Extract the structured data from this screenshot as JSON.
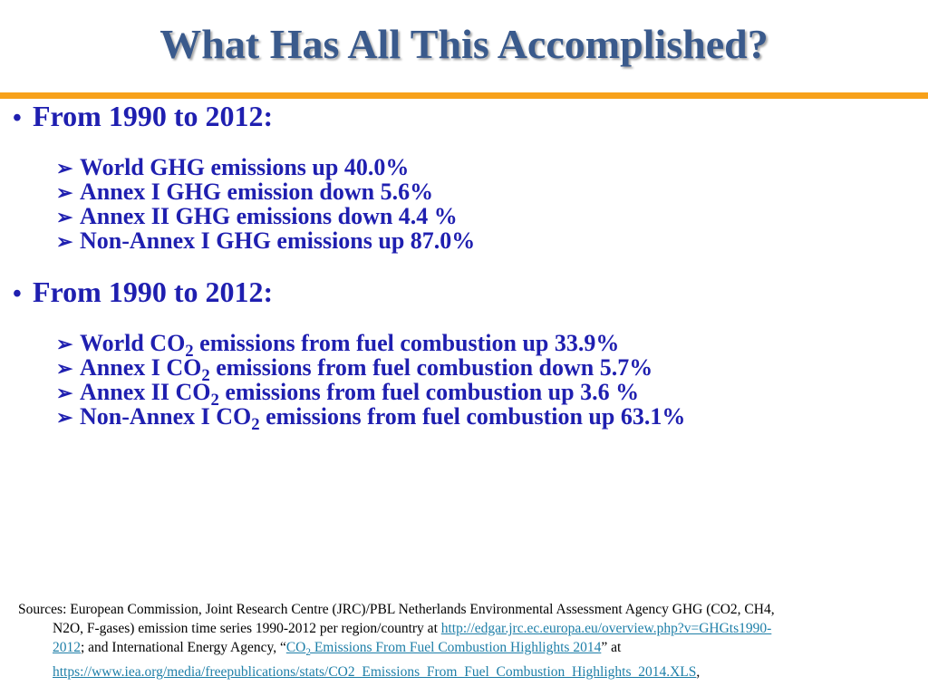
{
  "title": "What Has All This Accomplished?",
  "accent_color": "#f7a11a",
  "text_color": "#1f1fb0",
  "bullet_glyph": "•",
  "arrow_glyph": "➢",
  "section1": {
    "heading": "From 1990 to 2012:",
    "items": [
      "World GHG emissions up 40.0%",
      "Annex I GHG emission down 5.6%",
      "Annex II GHG emissions down 4.4 %",
      "Non-Annex I GHG emissions up 87.0%"
    ]
  },
  "section2": {
    "heading": "From 1990 to 2012:",
    "items": [
      {
        "pre": "World CO",
        "sub": "2",
        "post": " emissions from fuel combustion up 33.9%"
      },
      {
        "pre": "Annex I CO",
        "sub": "2",
        "post": " emissions from fuel combustion down 5.7%"
      },
      {
        "pre": "Annex II CO",
        "sub": "2",
        "post": " emissions from fuel combustion up 3.6 %"
      },
      {
        "pre": "Non-Annex I CO",
        "sub": "2",
        "post": " emissions from fuel combustion up 63.1%"
      }
    ]
  },
  "sources": {
    "line1": "Sources:  European Commission, Joint Research Centre (JRC)/PBL Netherlands Environmental Assessment Agency GHG (CO2, CH4,",
    "line2_text": "N2O, F-gases) emission time series 1990-2012 per region/country at ",
    "link1_part1": "http://edgar.jrc.ec.europa.eu/overview.php?v=GHGts1990-",
    "link1_part2": "2012",
    "line3_text": "; and International Energy Agency, “",
    "link2_pre": "CO",
    "link2_sub": "2",
    "link2_post": " Emissions From Fuel Combustion Highlights 2014",
    "line3_after": "” at",
    "link3": "https://www.iea.org/media/freepublications/stats/CO2_Emissions_From_Fuel_Combustion_Highlights_2014.XLS",
    "line4_after": ","
  }
}
